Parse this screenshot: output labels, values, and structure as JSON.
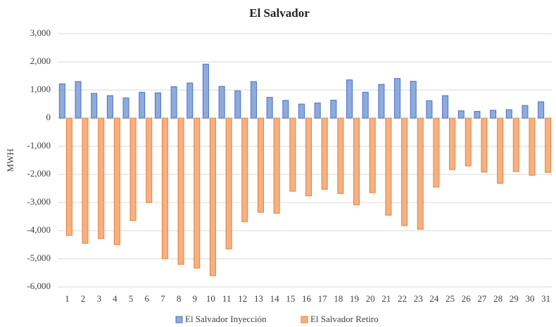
{
  "chart_data": {
    "type": "bar",
    "title": "El Salvador",
    "y_label": "MWH",
    "categories": [
      "1",
      "2",
      "3",
      "4",
      "5",
      "6",
      "7",
      "8",
      "9",
      "10",
      "11",
      "12",
      "13",
      "14",
      "15",
      "16",
      "17",
      "18",
      "19",
      "20",
      "21",
      "22",
      "23",
      "24",
      "25",
      "26",
      "27",
      "28",
      "29",
      "30",
      "31"
    ],
    "series": [
      {
        "name": "El Salvador Inyección",
        "color": "#8faadc",
        "edge": "#4472c4",
        "values": [
          1220,
          1300,
          880,
          800,
          720,
          920,
          900,
          1120,
          1250,
          1920,
          1130,
          970,
          1300,
          740,
          630,
          500,
          540,
          640,
          1360,
          920,
          1200,
          1410,
          1310,
          620,
          800,
          260,
          240,
          280,
          300,
          450,
          580
        ]
      },
      {
        "name": "El Salvador Retiro",
        "color": "#f4b183",
        "edge": "#ed7d31",
        "values": [
          -4170,
          -4450,
          -4280,
          -4500,
          -3640,
          -3000,
          -5000,
          -5200,
          -5330,
          -5600,
          -4650,
          -3680,
          -3350,
          -3380,
          -2600,
          -2760,
          -2530,
          -2680,
          -3080,
          -2650,
          -3450,
          -3820,
          -3950,
          -2450,
          -1830,
          -1700,
          -1920,
          -2320,
          -1900,
          -2030,
          -1930
        ]
      }
    ],
    "ylim": [
      -6000,
      3000
    ],
    "yticks": [
      {
        "value": -6000,
        "label": "-6,000"
      },
      {
        "value": -5000,
        "label": "-5,000"
      },
      {
        "value": -4000,
        "label": "-4,000"
      },
      {
        "value": -3000,
        "label": "-3,000"
      },
      {
        "value": -2000,
        "label": "-2,000"
      },
      {
        "value": -1000,
        "label": "-1,000"
      },
      0,
      {
        "value": 1000,
        "label": "1,000"
      },
      {
        "value": 2000,
        "label": "2,000"
      },
      {
        "value": 3000,
        "label": "3,000"
      }
    ],
    "grid": true,
    "legend": "bottom"
  }
}
